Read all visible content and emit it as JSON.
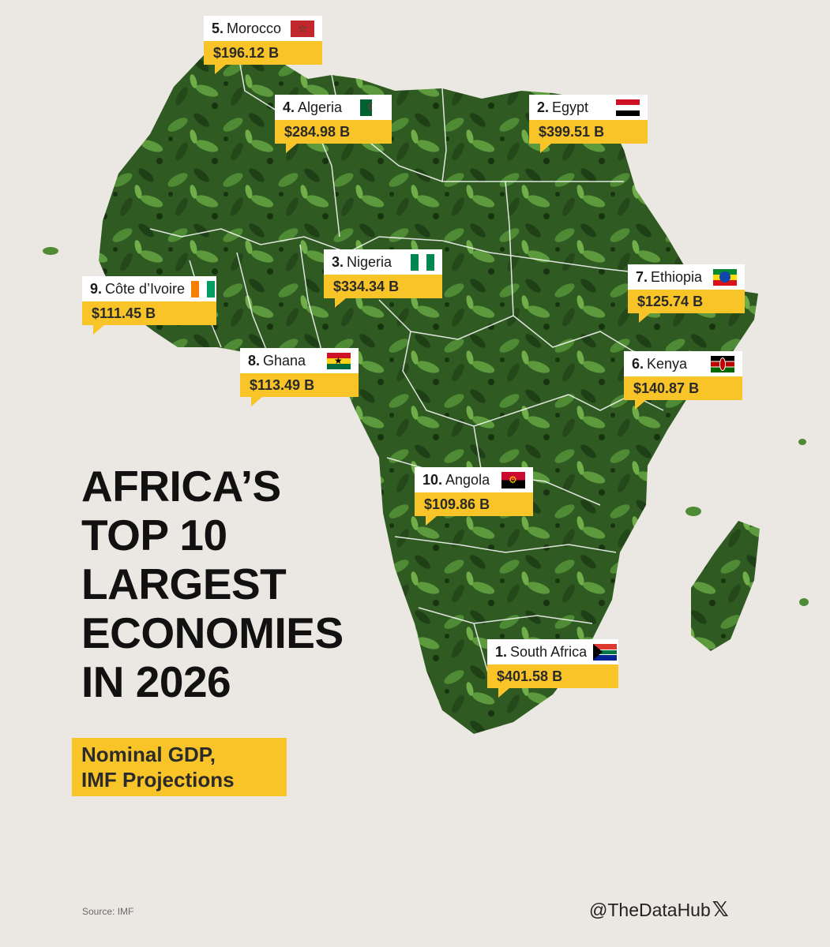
{
  "title_lines": [
    "AFRICA’S",
    "TOP 10",
    "LARGEST",
    "ECONOMIES",
    "IN 2026"
  ],
  "subtitle_lines": [
    "Nominal GDP,",
    "IMF Projections"
  ],
  "source": "Source: IMF",
  "handle": "@TheDataHub",
  "handle_icon": "x-logo-icon",
  "colors": {
    "background": "#ebe7e2",
    "accent": "#f8c427",
    "land": "#2f5a22",
    "border": "#ffffff"
  },
  "labels": [
    {
      "id": "morocco",
      "rank": "5.",
      "name": "Morocco",
      "value": "$196.12 B",
      "flag": "morocco-flag-icon"
    },
    {
      "id": "algeria",
      "rank": "4.",
      "name": "Algeria",
      "value": "$284.98 B",
      "flag": "algeria-flag-icon"
    },
    {
      "id": "egypt",
      "rank": "2.",
      "name": "Egypt",
      "value": "$399.51 B",
      "flag": "egypt-flag-icon"
    },
    {
      "id": "nigeria",
      "rank": "3.",
      "name": "Nigeria",
      "value": "$334.34 B",
      "flag": "nigeria-flag-icon"
    },
    {
      "id": "cote-divoire",
      "rank": "9.",
      "name": "Côte d’Ivoire",
      "value": "$111.45 B",
      "flag": "cote-divoire-flag-icon"
    },
    {
      "id": "ethiopia",
      "rank": "7.",
      "name": "Ethiopia",
      "value": "$125.74 B",
      "flag": "ethiopia-flag-icon"
    },
    {
      "id": "ghana",
      "rank": "8.",
      "name": "Ghana",
      "value": "$113.49 B",
      "flag": "ghana-flag-icon"
    },
    {
      "id": "kenya",
      "rank": "6.",
      "name": "Kenya",
      "value": "$140.87 B",
      "flag": "kenya-flag-icon"
    },
    {
      "id": "angola",
      "rank": "10.",
      "name": "Angola",
      "value": "$109.86 B",
      "flag": "angola-flag-icon"
    },
    {
      "id": "south-africa",
      "rank": "1.",
      "name": "South Africa",
      "value": "$401.58 B",
      "flag": "south-africa-flag-icon"
    }
  ]
}
